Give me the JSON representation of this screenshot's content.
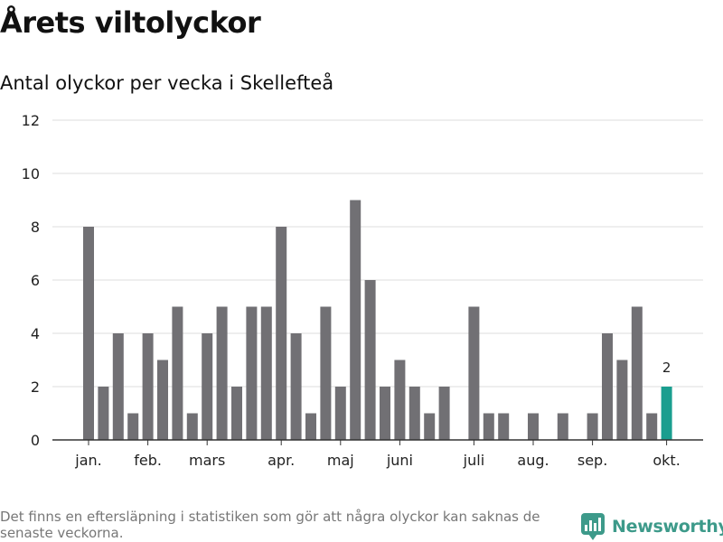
{
  "header": {
    "title": "Årets viltolyckor",
    "subtitle": "Antal olyckor per vecka i Skellefteå"
  },
  "footer": {
    "note": "Det finns en eftersläpning i statistiken som gör att några olyckor kan saknas de senaste veckorna.",
    "brand": "Newsworthy"
  },
  "colors": {
    "bar": "#717074",
    "highlight": "#1a9e8f",
    "grid": "#dddddd",
    "axis": "#333333",
    "brand": "#3d9a8a"
  },
  "chart_data": {
    "type": "bar",
    "title": "Antal olyckor per vecka i Skellefteå",
    "xlabel": "",
    "ylabel": "",
    "ylim": [
      0,
      12
    ],
    "yticks": [
      0,
      2,
      4,
      6,
      8,
      10,
      12
    ],
    "grid": true,
    "legend": "none",
    "weeks": [
      1,
      2,
      3,
      4,
      5,
      6,
      7,
      8,
      9,
      10,
      11,
      12,
      13,
      14,
      15,
      16,
      17,
      18,
      19,
      20,
      21,
      22,
      23,
      24,
      25,
      26,
      27,
      28,
      29,
      30,
      31,
      32,
      33,
      34,
      35,
      36,
      37,
      38,
      39,
      40
    ],
    "values": [
      8,
      2,
      4,
      1,
      4,
      3,
      5,
      1,
      4,
      5,
      2,
      5,
      5,
      8,
      4,
      1,
      5,
      2,
      9,
      6,
      2,
      3,
      2,
      1,
      2,
      0,
      5,
      1,
      1,
      0,
      1,
      0,
      1,
      0,
      1,
      4,
      3,
      5,
      1,
      2
    ],
    "highlight_index": 39,
    "highlight_label": "2",
    "month_labels": [
      {
        "label": "jan.",
        "week": 1
      },
      {
        "label": "feb.",
        "week": 5
      },
      {
        "label": "mars",
        "week": 9
      },
      {
        "label": "apr.",
        "week": 14
      },
      {
        "label": "maj",
        "week": 18
      },
      {
        "label": "juni",
        "week": 22
      },
      {
        "label": "juli",
        "week": 27
      },
      {
        "label": "aug.",
        "week": 31
      },
      {
        "label": "sep.",
        "week": 35
      },
      {
        "label": "okt.",
        "week": 40
      }
    ]
  }
}
